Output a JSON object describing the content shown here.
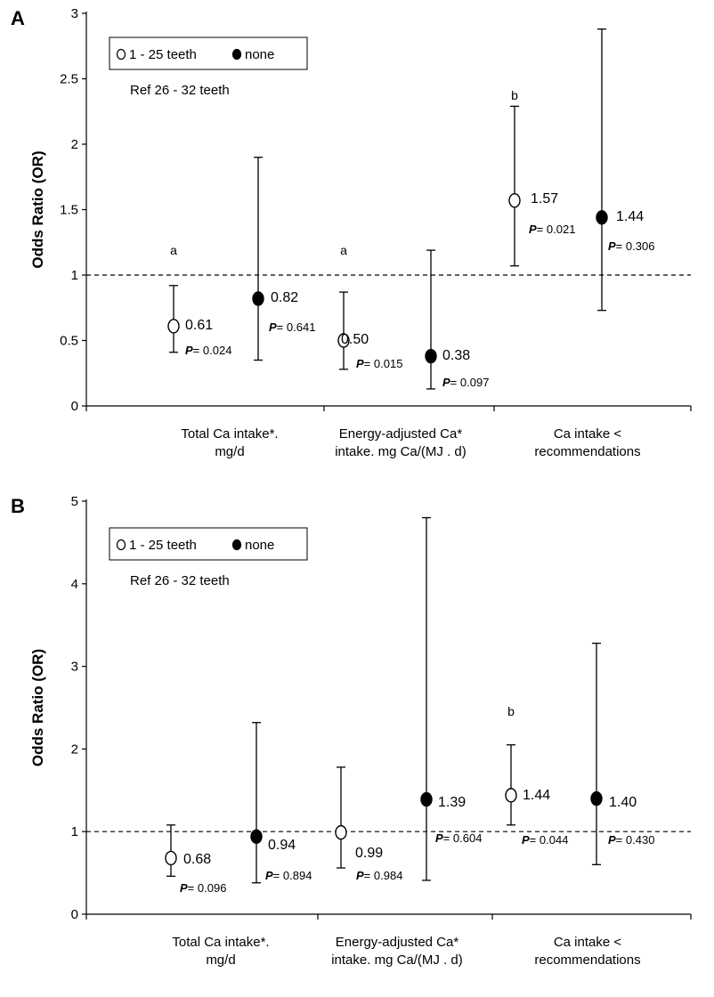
{
  "chart_data": [
    {
      "type": "scatter",
      "panel": "A",
      "ylabel": "Odds Ratio (OR)",
      "ylim": [
        0,
        3
      ],
      "yticks": [
        "0",
        "0.5",
        "1",
        "1.5",
        "2",
        "2.5",
        "3"
      ],
      "reference_line": 1,
      "legend": {
        "items": [
          "1 - 25 teeth",
          "none"
        ],
        "ref": "Ref 26 - 32 teeth"
      },
      "categories": [
        {
          "lines": [
            "Total Ca intake*.",
            "mg/d"
          ],
          "sig": "a"
        },
        {
          "lines": [
            "Energy-adjusted Ca*",
            "intake. mg Ca/(MJ . d)"
          ],
          "sig": "a"
        },
        {
          "lines": [
            "Ca intake <",
            "recommendations"
          ],
          "sig": "b"
        }
      ],
      "series": [
        {
          "name": "1 - 25 teeth",
          "marker": "open",
          "points": [
            {
              "or": 0.61,
              "low": 0.41,
              "high": 0.92,
              "or_label": "0.61",
              "p_value": "0.024"
            },
            {
              "or": 0.5,
              "low": 0.28,
              "high": 0.87,
              "or_label": "0.50",
              "p_value": "0.015"
            },
            {
              "or": 1.57,
              "low": 1.07,
              "high": 2.29,
              "or_label": "1.57",
              "p_value": "0.021"
            }
          ]
        },
        {
          "name": "none",
          "marker": "filled",
          "points": [
            {
              "or": 0.82,
              "low": 0.35,
              "high": 1.9,
              "or_label": "0.82",
              "p_value": "0.641"
            },
            {
              "or": 0.38,
              "low": 0.13,
              "high": 1.19,
              "or_label": "0.38",
              "p_value": "0.097"
            },
            {
              "or": 1.44,
              "low": 0.73,
              "high": 2.88,
              "or_label": "1.44",
              "p_value": "0.306"
            }
          ]
        }
      ]
    },
    {
      "type": "scatter",
      "panel": "B",
      "ylabel": "Odds Ratio (OR)",
      "ylim": [
        0,
        5
      ],
      "yticks": [
        "0",
        "1",
        "2",
        "3",
        "4",
        "5"
      ],
      "reference_line": 1,
      "legend": {
        "items": [
          "1 - 25 teeth",
          "none"
        ],
        "ref": "Ref 26 - 32 teeth"
      },
      "categories": [
        {
          "lines": [
            "Total Ca intake*.",
            "mg/d"
          ],
          "sig": ""
        },
        {
          "lines": [
            "Energy-adjusted Ca*",
            "intake. mg Ca/(MJ . d)"
          ],
          "sig": ""
        },
        {
          "lines": [
            "Ca intake <",
            "recommendations"
          ],
          "sig": "b"
        }
      ],
      "series": [
        {
          "name": "1 - 25 teeth",
          "marker": "open",
          "points": [
            {
              "or": 0.68,
              "low": 0.46,
              "high": 1.08,
              "or_label": "0.68",
              "p_value": "0.096"
            },
            {
              "or": 0.99,
              "low": 0.56,
              "high": 1.78,
              "or_label": "0.99",
              "p_value": "0.984"
            },
            {
              "or": 1.44,
              "low": 1.08,
              "high": 2.05,
              "or_label": "1.44",
              "p_value": "0.044"
            }
          ]
        },
        {
          "name": "none",
          "marker": "filled",
          "points": [
            {
              "or": 0.94,
              "low": 0.38,
              "high": 2.32,
              "or_label": "0.94",
              "p_value": "0.894"
            },
            {
              "or": 1.39,
              "low": 0.41,
              "high": 4.8,
              "or_label": "1.39",
              "p_value": "0.604"
            },
            {
              "or": 1.4,
              "low": 0.6,
              "high": 3.28,
              "or_label": "1.40",
              "p_value": "0.430"
            }
          ]
        }
      ]
    }
  ],
  "p_prefix": "P",
  "p_eq": "= "
}
